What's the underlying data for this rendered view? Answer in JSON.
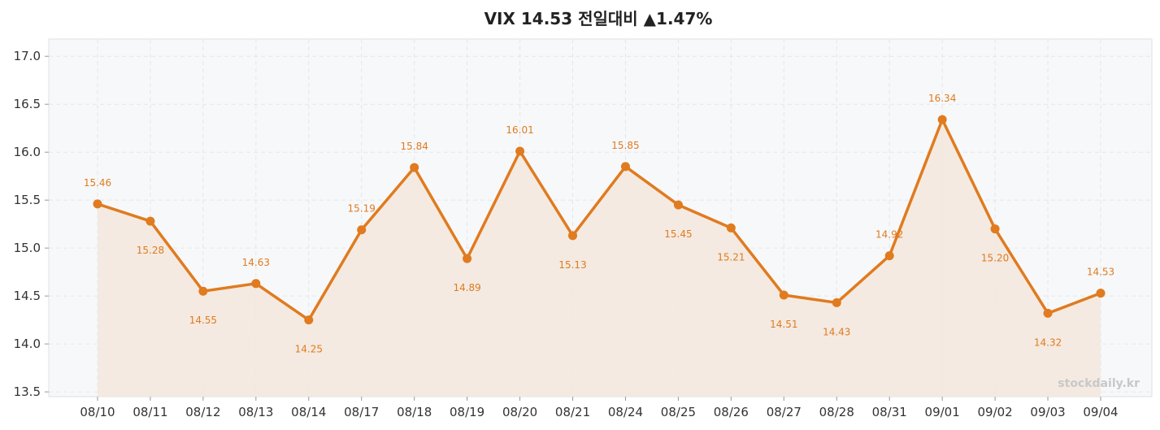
{
  "chart_data": {
    "type": "line",
    "title": "VIX 14.53 전일대비 ▲1.47%",
    "categories": [
      "08/10",
      "08/11",
      "08/12",
      "08/13",
      "08/14",
      "08/17",
      "08/18",
      "08/19",
      "08/20",
      "08/21",
      "08/24",
      "08/25",
      "08/26",
      "08/27",
      "08/28",
      "08/31",
      "09/01",
      "09/02",
      "09/03",
      "09/04"
    ],
    "series": [
      {
        "values": [
          15.46,
          15.28,
          14.55,
          14.63,
          14.25,
          15.19,
          15.84,
          14.89,
          16.01,
          15.13,
          15.85,
          15.45,
          15.21,
          14.51,
          14.43,
          14.92,
          16.34,
          15.2,
          14.32,
          14.53
        ]
      }
    ],
    "labels": [
      "15.46",
      "15.28",
      "14.55",
      "14.63",
      "14.25",
      "15.19",
      "15.84",
      "14.89",
      "16.01",
      "15.13",
      "15.85",
      "15.45",
      "15.21",
      "14.51",
      "14.43",
      "14.92",
      "16.34",
      "15.20",
      "14.32",
      "14.53"
    ],
    "ylim": [
      13.45,
      17.18
    ],
    "yticks": [
      "13.5",
      "14.0",
      "14.5",
      "15.0",
      "15.5",
      "16.0",
      "16.5",
      "17.0"
    ],
    "grid": true,
    "line_color": "#e07b1f",
    "fill_color": "#f3e8dc",
    "plot_background": "#f7f8fa",
    "watermark": "stockdaily.kr"
  }
}
